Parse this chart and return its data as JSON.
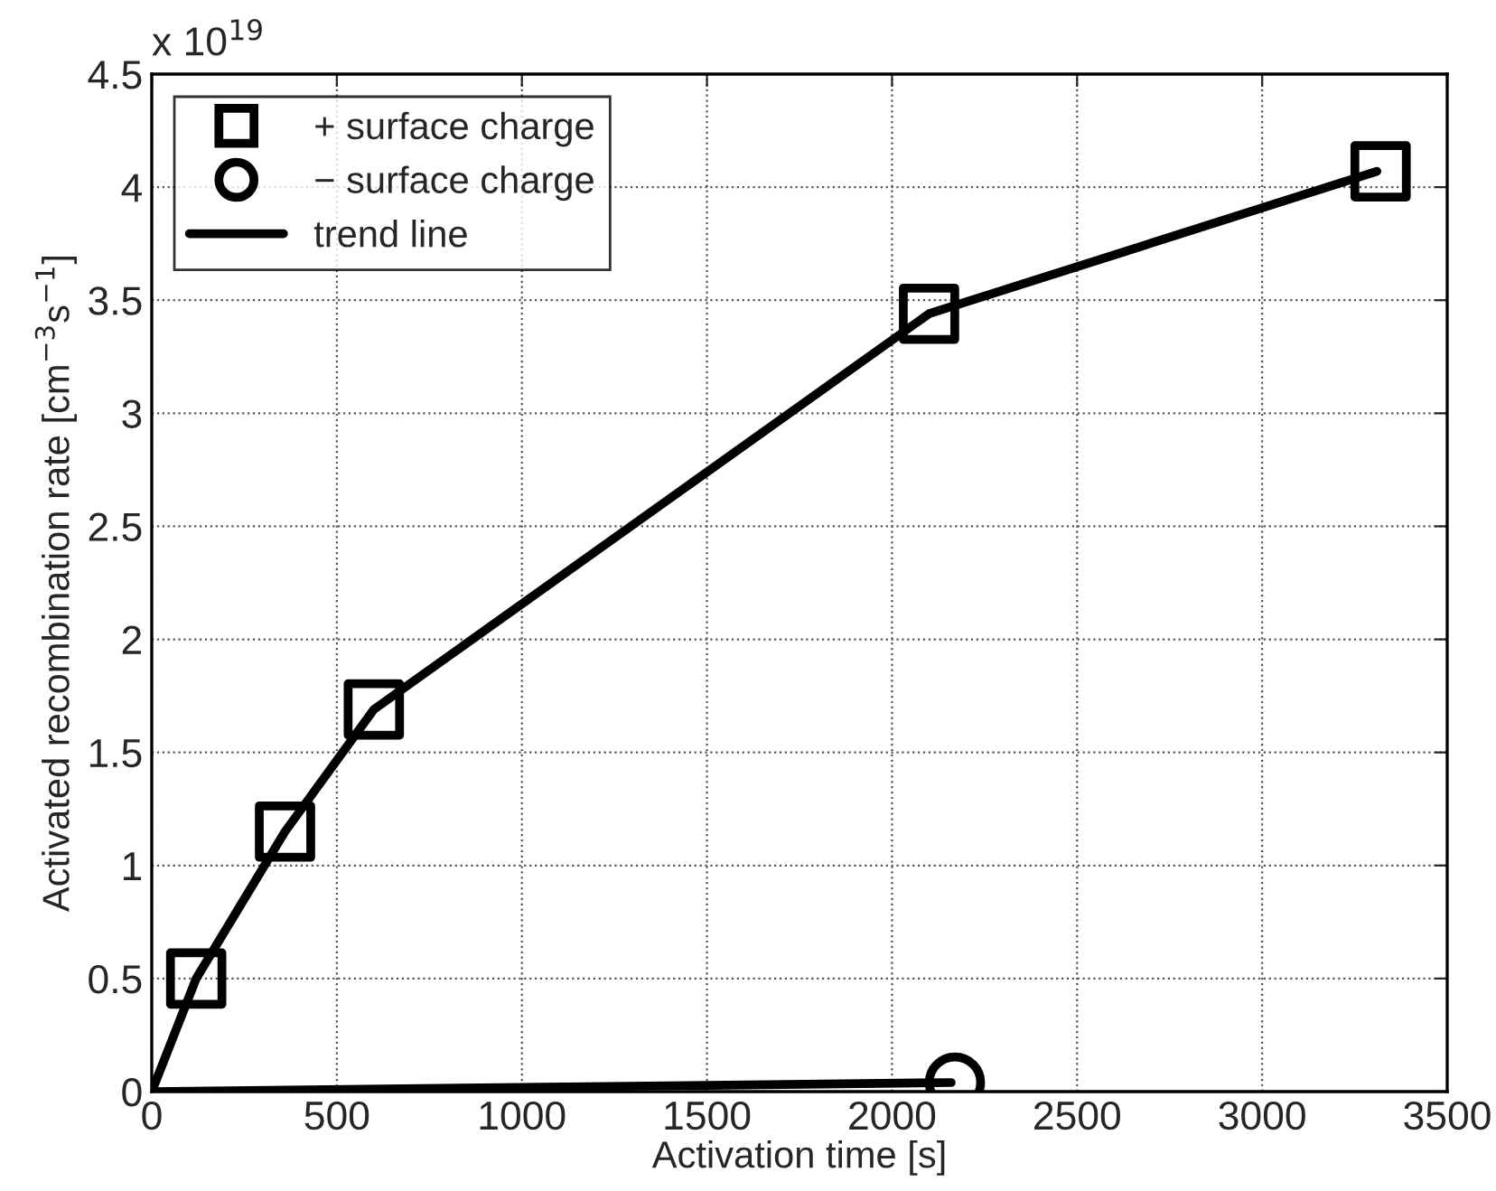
{
  "chart_data": {
    "type": "scatter",
    "xlabel": "Activation time [s]",
    "ylabel": "Activated recombination rate [cm$^{−3}$s$^{−1}$]",
    "annotations": [
      "x 10$^{19}$"
    ],
    "series": [
      {
        "name": "+ surface charge",
        "marker": "square",
        "color": "#000000",
        "x": [
          120,
          360,
          600,
          2100,
          3320
        ],
        "values": [
          0.5,
          1.15,
          1.69,
          3.44,
          4.07
        ]
      },
      {
        "name": "− surface charge",
        "marker": "circle",
        "color": "#000000",
        "x": [
          2170
        ],
        "values": [
          0.04
        ]
      },
      {
        "name": "trend line",
        "type": "line",
        "color": "#000000",
        "x": [
          0,
          120,
          360,
          600,
          2100,
          3310
        ],
        "values": [
          0,
          0.5,
          1.15,
          1.69,
          3.44,
          4.07
        ]
      },
      {
        "type": "line",
        "color": "#000000",
        "x": [
          0,
          2160
        ],
        "values": [
          0,
          0.04
        ]
      }
    ],
    "xlim": [
      0,
      3500
    ],
    "xticks": [
      0,
      500,
      1000,
      1500,
      2000,
      2500,
      3000,
      3500
    ],
    "ylim": [
      0,
      4.5
    ],
    "yticks": [
      0,
      0.5,
      1,
      1.5,
      2,
      2.5,
      3,
      3.5,
      4,
      4.5
    ],
    "grid": true,
    "legend": "top left"
  }
}
